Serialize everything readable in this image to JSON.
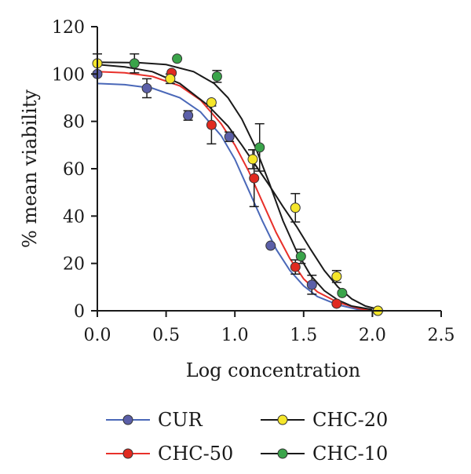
{
  "chart_data": {
    "type": "scatter",
    "xlabel": "Log concentration",
    "ylabel": "% mean viability",
    "xlim": [
      0,
      2.5
    ],
    "ylim": [
      0,
      120
    ],
    "xticks": [
      "0.0",
      "0.5",
      "1.0",
      "1.5",
      "2.0",
      "2.5"
    ],
    "yticks": [
      "0",
      "20",
      "40",
      "60",
      "80",
      "100",
      "120"
    ],
    "grid": false,
    "legend_position": "bottom",
    "series": [
      {
        "name": "CUR",
        "line_color": "#4a68b8",
        "marker_color": "#5b5fa8",
        "points": [
          {
            "x": 0.0,
            "y": 100.0
          },
          {
            "x": 0.36,
            "y": 94.0,
            "err": 4.0
          },
          {
            "x": 0.66,
            "y": 82.5,
            "err": 2.0
          },
          {
            "x": 0.96,
            "y": 73.5,
            "err": 2.0
          },
          {
            "x": 1.26,
            "y": 27.5
          },
          {
            "x": 1.56,
            "y": 11.0,
            "err": 4.0
          },
          {
            "x": 2.04,
            "y": 0.0
          }
        ],
        "curve": [
          {
            "x": 0.0,
            "y": 96.0
          },
          {
            "x": 0.2,
            "y": 95.5
          },
          {
            "x": 0.4,
            "y": 94.0
          },
          {
            "x": 0.6,
            "y": 90.0
          },
          {
            "x": 0.75,
            "y": 84.0
          },
          {
            "x": 0.9,
            "y": 74.0
          },
          {
            "x": 1.0,
            "y": 64.0
          },
          {
            "x": 1.1,
            "y": 51.0
          },
          {
            "x": 1.2,
            "y": 38.0
          },
          {
            "x": 1.3,
            "y": 26.0
          },
          {
            "x": 1.4,
            "y": 17.0
          },
          {
            "x": 1.5,
            "y": 10.5
          },
          {
            "x": 1.6,
            "y": 6.0
          },
          {
            "x": 1.75,
            "y": 2.5
          },
          {
            "x": 1.9,
            "y": 0.5
          },
          {
            "x": 2.0,
            "y": 0.0
          }
        ]
      },
      {
        "name": "CHC-50",
        "line_color": "#e8302a",
        "marker_color": "#e02a20",
        "points": [
          {
            "x": 0.54,
            "y": 100.5
          },
          {
            "x": 0.83,
            "y": 78.5,
            "err": 8.0
          },
          {
            "x": 1.14,
            "y": 56.0,
            "err": 12.0
          },
          {
            "x": 1.44,
            "y": 18.5,
            "err": 3.0
          },
          {
            "x": 1.74,
            "y": 3.0
          }
        ],
        "curve": [
          {
            "x": 0.0,
            "y": 101.0
          },
          {
            "x": 0.2,
            "y": 100.5
          },
          {
            "x": 0.4,
            "y": 99.0
          },
          {
            "x": 0.6,
            "y": 95.0
          },
          {
            "x": 0.75,
            "y": 89.0
          },
          {
            "x": 0.9,
            "y": 79.0
          },
          {
            "x": 1.0,
            "y": 70.0
          },
          {
            "x": 1.1,
            "y": 59.0
          },
          {
            "x": 1.2,
            "y": 46.0
          },
          {
            "x": 1.3,
            "y": 33.0
          },
          {
            "x": 1.4,
            "y": 22.0
          },
          {
            "x": 1.5,
            "y": 13.5
          },
          {
            "x": 1.6,
            "y": 8.0
          },
          {
            "x": 1.75,
            "y": 3.5
          },
          {
            "x": 1.9,
            "y": 1.0
          },
          {
            "x": 1.98,
            "y": 0.0
          }
        ]
      },
      {
        "name": "CHC-20",
        "line_color": "#1a1a1a",
        "marker_color": "#f5e62a",
        "points": [
          {
            "x": 0.0,
            "y": 104.5,
            "err": 4.0
          },
          {
            "x": 0.53,
            "y": 98.0,
            "err": 2.0
          },
          {
            "x": 0.83,
            "y": 88.0
          },
          {
            "x": 1.13,
            "y": 64.0,
            "err": 4.0
          },
          {
            "x": 1.44,
            "y": 43.5,
            "err": 6.0
          },
          {
            "x": 1.74,
            "y": 14.5,
            "err": 2.5
          },
          {
            "x": 2.04,
            "y": 0.0
          }
        ],
        "curve": [
          {
            "x": 0.0,
            "y": 104.0
          },
          {
            "x": 0.2,
            "y": 103.0
          },
          {
            "x": 0.4,
            "y": 101.0
          },
          {
            "x": 0.6,
            "y": 96.0
          },
          {
            "x": 0.8,
            "y": 87.0
          },
          {
            "x": 0.95,
            "y": 78.0
          },
          {
            "x": 1.05,
            "y": 70.0
          },
          {
            "x": 1.15,
            "y": 61.5
          },
          {
            "x": 1.25,
            "y": 53.0
          },
          {
            "x": 1.35,
            "y": 44.0
          },
          {
            "x": 1.45,
            "y": 35.5
          },
          {
            "x": 1.55,
            "y": 26.0
          },
          {
            "x": 1.65,
            "y": 17.0
          },
          {
            "x": 1.75,
            "y": 10.0
          },
          {
            "x": 1.85,
            "y": 5.0
          },
          {
            "x": 1.95,
            "y": 2.0
          },
          {
            "x": 2.05,
            "y": 0.5
          }
        ]
      },
      {
        "name": "CHC-10",
        "line_color": "#1a1a1a",
        "marker_color": "#3aa44a",
        "points": [
          {
            "x": 0.27,
            "y": 104.5,
            "err": 4.0
          },
          {
            "x": 0.58,
            "y": 106.5
          },
          {
            "x": 0.87,
            "y": 99.0,
            "err": 2.5
          },
          {
            "x": 1.18,
            "y": 69.0,
            "err": 10.0
          },
          {
            "x": 1.48,
            "y": 23.0,
            "err": 3.0
          },
          {
            "x": 1.78,
            "y": 7.5
          }
        ],
        "curve": [
          {
            "x": 0.0,
            "y": 105.0
          },
          {
            "x": 0.3,
            "y": 104.8
          },
          {
            "x": 0.5,
            "y": 104.0
          },
          {
            "x": 0.7,
            "y": 101.0
          },
          {
            "x": 0.85,
            "y": 96.0
          },
          {
            "x": 0.95,
            "y": 90.0
          },
          {
            "x": 1.05,
            "y": 81.0
          },
          {
            "x": 1.15,
            "y": 69.0
          },
          {
            "x": 1.25,
            "y": 54.0
          },
          {
            "x": 1.35,
            "y": 38.0
          },
          {
            "x": 1.45,
            "y": 25.0
          },
          {
            "x": 1.55,
            "y": 15.0
          },
          {
            "x": 1.65,
            "y": 8.5
          },
          {
            "x": 1.75,
            "y": 4.5
          },
          {
            "x": 1.85,
            "y": 2.0
          },
          {
            "x": 1.95,
            "y": 1.0
          },
          {
            "x": 2.0,
            "y": 0.5
          }
        ]
      }
    ],
    "legend": [
      {
        "series": 0,
        "label": "CUR"
      },
      {
        "series": 2,
        "label": "CHC-20"
      },
      {
        "series": 1,
        "label": "CHC-50"
      },
      {
        "series": 3,
        "label": "CHC-10"
      }
    ]
  }
}
